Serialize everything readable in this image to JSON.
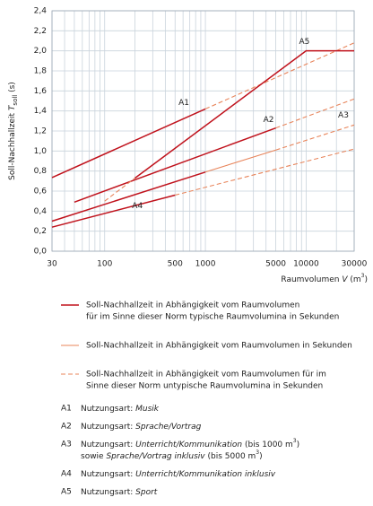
{
  "chart_data": {
    "type": "line",
    "xscale": "log",
    "grid": true,
    "ylabel": [
      {
        "t": "Soll-Nachhallzeit "
      },
      {
        "t": "T",
        "s": "i"
      },
      {
        "t": "soll",
        "s": "sub"
      },
      {
        "t": " (s)"
      }
    ],
    "xlabel": [
      {
        "t": "Raumvolumen "
      },
      {
        "t": "V",
        "s": "i"
      },
      {
        "t": " (m"
      },
      {
        "t": "3",
        "s": "sup"
      },
      {
        "t": ")"
      }
    ],
    "xlim": [
      30,
      30000
    ],
    "xticks": [
      30,
      100,
      500,
      1000,
      5000,
      10000,
      30000
    ],
    "xminor": [
      40,
      50,
      60,
      70,
      80,
      90,
      200,
      300,
      400,
      600,
      700,
      800,
      900,
      2000,
      3000,
      4000,
      6000,
      7000,
      8000,
      9000,
      20000
    ],
    "ylim": [
      0,
      2.4
    ],
    "yticks": [
      {
        "value": 0,
        "label": "0,0"
      },
      {
        "value": 0.2,
        "label": "0,2"
      },
      {
        "value": 0.4,
        "label": "0,4"
      },
      {
        "value": 0.6,
        "label": "0,6"
      },
      {
        "value": 0.8,
        "label": "0,8"
      },
      {
        "value": 1.0,
        "label": "1,0"
      },
      {
        "value": 1.2,
        "label": "1,2"
      },
      {
        "value": 1.4,
        "label": "1,4"
      },
      {
        "value": 1.6,
        "label": "1,6"
      },
      {
        "value": 1.8,
        "label": "1,8"
      },
      {
        "value": 2.0,
        "label": "2,0"
      },
      {
        "value": 2.2,
        "label": "2,2"
      },
      {
        "value": 2.4,
        "label": "2,4"
      }
    ],
    "styles": [
      {
        "color": "#c0121c",
        "dash": false,
        "label": [
          "Soll-Nachhallzeit in Abhängigkeit vom Raumvolumen",
          "für im Sinne dieser Norm typische Raumvolumina in Sekunden"
        ]
      },
      {
        "color": "#e8845a",
        "dash": false,
        "label": [
          "Soll-Nachhallzeit in Abhängigkeit vom Raumvolumen in Sekunden"
        ]
      },
      {
        "color": "#e8845a",
        "dash": true,
        "label": [
          "Soll-Nachhallzeit in Abhängigkeit vom Raumvolumen für im",
          "Sinne dieser Norm untypische Raumvolumina in Sekunden"
        ]
      }
    ],
    "lines": [
      {
        "name": "A1",
        "pieces": [
          {
            "x": [
              30,
              1000
            ],
            "values": [
              0.735,
              1.42
            ],
            "style": 0
          },
          {
            "x": [
              1000,
              30000
            ],
            "values": [
              1.42,
              2.08
            ],
            "style": 2
          }
        ]
      },
      {
        "name": "A2",
        "pieces": [
          {
            "x": [
              50,
              5000
            ],
            "values": [
              0.49,
              1.23
            ],
            "style": 0
          },
          {
            "x": [
              5000,
              30000
            ],
            "values": [
              1.23,
              1.52
            ],
            "style": 2
          }
        ]
      },
      {
        "name": "A3",
        "pieces": [
          {
            "x": [
              30,
              1000
            ],
            "values": [
              0.3,
              0.79
            ],
            "style": 0
          },
          {
            "x": [
              1000,
              5000
            ],
            "values": [
              0.79,
              1.01
            ],
            "style": 1
          },
          {
            "x": [
              5000,
              30000
            ],
            "values": [
              1.01,
              1.26
            ],
            "style": 2
          }
        ]
      },
      {
        "name": "A4",
        "pieces": [
          {
            "x": [
              30,
              500
            ],
            "values": [
              0.24,
              0.56
            ],
            "style": 0
          },
          {
            "x": [
              500,
              30000
            ],
            "values": [
              0.56,
              1.02
            ],
            "style": 2
          }
        ]
      },
      {
        "name": "A5",
        "pieces": [
          {
            "x": [
              100,
              200
            ],
            "values": [
              0.5,
              0.73
            ],
            "style": 2
          },
          {
            "x": [
              200,
              10000,
              30000
            ],
            "values": [
              0.73,
              2.0,
              2.0
            ],
            "style": 0
          }
        ]
      }
    ],
    "notes": [
      {
        "key": "A1",
        "rows": [
          [
            {
              "t": "Nutzungsart: "
            },
            {
              "t": "Musik",
              "s": "i"
            }
          ]
        ]
      },
      {
        "key": "A2",
        "rows": [
          [
            {
              "t": "Nutzungsart: "
            },
            {
              "t": "Sprache/Vortrag",
              "s": "i"
            }
          ]
        ]
      },
      {
        "key": "A3",
        "rows": [
          [
            {
              "t": "Nutzungsart: "
            },
            {
              "t": "Unterricht/Kommunikation",
              "s": "i"
            },
            {
              "t": " (bis 1000 m"
            },
            {
              "t": "3",
              "s": "sup"
            },
            {
              "t": ")"
            }
          ],
          [
            {
              "t": "sowie "
            },
            {
              "t": "Sprache/Vortrag inklusiv",
              "s": "i"
            },
            {
              "t": " (bis  5000 m"
            },
            {
              "t": "3",
              "s": "sup"
            },
            {
              "t": ")"
            }
          ]
        ]
      },
      {
        "key": "A4",
        "rows": [
          [
            {
              "t": "Nutzungsart: "
            },
            {
              "t": "Unterricht/Kommunikation inklusiv",
              "s": "i"
            }
          ]
        ]
      },
      {
        "key": "A5",
        "rows": [
          [
            {
              "t": "Nutzungsart: "
            },
            {
              "t": "Sport",
              "s": "i"
            }
          ]
        ]
      }
    ]
  }
}
